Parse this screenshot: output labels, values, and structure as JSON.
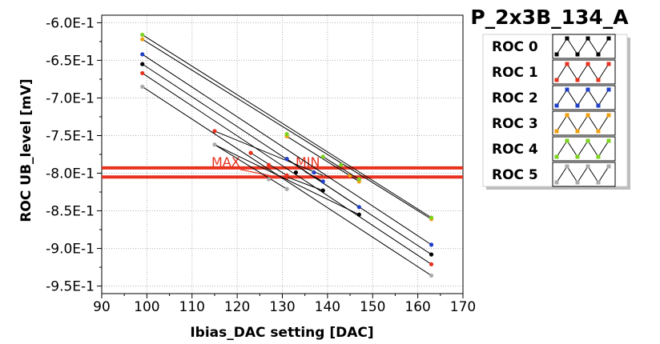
{
  "chart_data": {
    "type": "scatter",
    "title": "P_2x3B_134_A",
    "xlabel": "Ibias_DAC setting [DAC]",
    "ylabel": "ROC UB_level [mV]",
    "xlim": [
      90,
      170
    ],
    "ylim": [
      -0.96,
      -0.59
    ],
    "xticks": [
      90,
      100,
      110,
      120,
      130,
      140,
      150,
      160,
      170
    ],
    "xtick_labels": [
      "90",
      "100",
      "110",
      "120",
      "130",
      "140",
      "150",
      "160",
      "170"
    ],
    "yticks": [
      -0.6,
      -0.65,
      -0.7,
      -0.75,
      -0.8,
      -0.85,
      -0.9,
      -0.95
    ],
    "ytick_labels": [
      "-6.0E-1",
      "-6.5E-1",
      "-7.0E-1",
      "-7.5E-1",
      "-8.0E-1",
      "-8.5E-1",
      "-9.0E-1",
      "-9.5E-1"
    ],
    "grid": true,
    "legend_position": "right",
    "thresholds": [
      {
        "label": "MAX",
        "y": -0.793,
        "color": "#e8321e"
      },
      {
        "label": "MIN",
        "y": -0.805,
        "color": "#e8321e"
      }
    ],
    "series": [
      {
        "name": "ROC 0",
        "color": "#000000",
        "segments": [
          {
            "x": [
              99,
              163
            ],
            "y": [
              -0.655,
              -0.908
            ]
          },
          {
            "x": [
              115,
              147
            ],
            "y": [
              -0.762,
              -0.855
            ]
          },
          {
            "x": [
              131,
              139
            ],
            "y": [
              -0.805,
              -0.823
            ]
          }
        ],
        "points": [
          {
            "x": 99,
            "y": -0.655
          },
          {
            "x": 163,
            "y": -0.908
          },
          {
            "x": 133,
            "y": -0.799
          },
          {
            "x": 147,
            "y": -0.855
          },
          {
            "x": 139,
            "y": -0.823
          }
        ]
      },
      {
        "name": "ROC 1",
        "color": "#e8321e",
        "segments": [
          {
            "x": [
              99,
              163
            ],
            "y": [
              -0.667,
              -0.921
            ]
          },
          {
            "x": [
              115,
              139
            ],
            "y": [
              -0.744,
              -0.803
            ]
          },
          {
            "x": [
              123,
              131
            ],
            "y": [
              -0.773,
              -0.803
            ]
          }
        ],
        "points": [
          {
            "x": 99,
            "y": -0.667
          },
          {
            "x": 163,
            "y": -0.921
          },
          {
            "x": 115,
            "y": -0.744
          },
          {
            "x": 123,
            "y": -0.773
          },
          {
            "x": 127,
            "y": -0.789
          },
          {
            "x": 131,
            "y": -0.803
          }
        ]
      },
      {
        "name": "ROC 2",
        "color": "#1f3fc8",
        "segments": [
          {
            "x": [
              99,
              163
            ],
            "y": [
              -0.642,
              -0.895
            ]
          },
          {
            "x": [
              131,
              147
            ],
            "y": [
              -0.781,
              -0.845
            ]
          },
          {
            "x": [
              135,
              139
            ],
            "y": [
              -0.798,
              -0.811
            ]
          }
        ],
        "points": [
          {
            "x": 99,
            "y": -0.642
          },
          {
            "x": 163,
            "y": -0.895
          },
          {
            "x": 131,
            "y": -0.781
          },
          {
            "x": 137,
            "y": -0.799
          },
          {
            "x": 139,
            "y": -0.811
          },
          {
            "x": 147,
            "y": -0.845
          }
        ]
      },
      {
        "name": "ROC 3",
        "color": "#f0a010",
        "segments": [
          {
            "x": [
              99,
              163
            ],
            "y": [
              -0.622,
              -0.861
            ]
          },
          {
            "x": [
              131,
              147
            ],
            "y": [
              -0.751,
              -0.811
            ]
          }
        ],
        "points": [
          {
            "x": 99,
            "y": -0.622
          },
          {
            "x": 163,
            "y": -0.861
          },
          {
            "x": 131,
            "y": -0.751
          },
          {
            "x": 145,
            "y": -0.803
          },
          {
            "x": 147,
            "y": -0.811
          }
        ]
      },
      {
        "name": "ROC 4",
        "color": "#7ed321",
        "segments": [
          {
            "x": [
              99,
              163
            ],
            "y": [
              -0.616,
              -0.859
            ]
          },
          {
            "x": [
              139,
              147
            ],
            "y": [
              -0.778,
              -0.808
            ]
          }
        ],
        "points": [
          {
            "x": 99,
            "y": -0.616
          },
          {
            "x": 163,
            "y": -0.859
          },
          {
            "x": 131,
            "y": -0.748
          },
          {
            "x": 139,
            "y": -0.778
          },
          {
            "x": 143,
            "y": -0.789
          },
          {
            "x": 147,
            "y": -0.808
          }
        ]
      },
      {
        "name": "ROC 5",
        "color": "#aaaaaa",
        "segments": [
          {
            "x": [
              99,
              163
            ],
            "y": [
              -0.685,
              -0.936
            ]
          },
          {
            "x": [
              115,
              131
            ],
            "y": [
              -0.762,
              -0.821
            ]
          }
        ],
        "points": [
          {
            "x": 99,
            "y": -0.685
          },
          {
            "x": 163,
            "y": -0.936
          },
          {
            "x": 115,
            "y": -0.762
          },
          {
            "x": 127,
            "y": -0.808
          },
          {
            "x": 131,
            "y": -0.821
          }
        ]
      }
    ]
  }
}
